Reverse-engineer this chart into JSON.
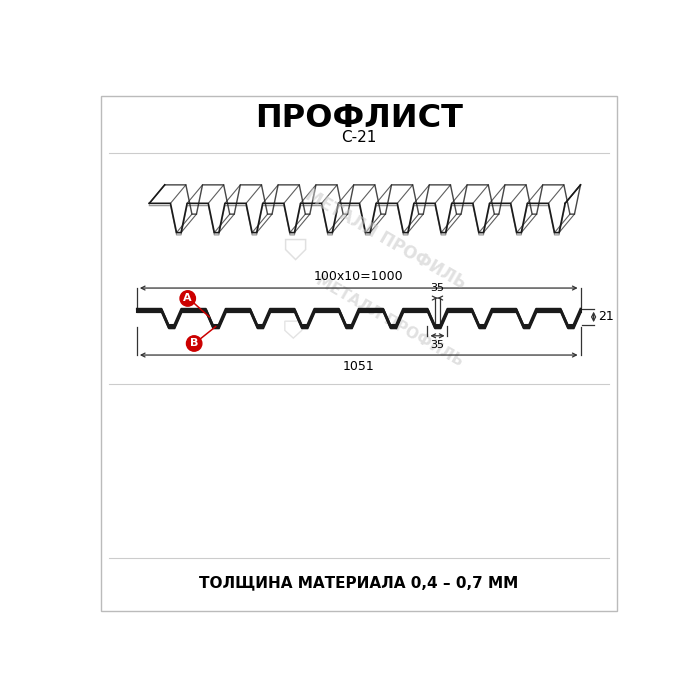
{
  "title": "ПРОФЛИСТ",
  "subtitle": "С-21",
  "footer": "ТОЛЩИНА МАТЕРИАЛА 0,4 – 0,7 ММ",
  "watermark": "МЕТАЛЛ ПРОФИЛЬ",
  "bg_color": "#ffffff",
  "profile_color": "#1a1a1a",
  "dim_color": "#333333",
  "red_circle_color": "#cc0000",
  "label_A": "A",
  "label_B": "B",
  "dim_top": "100х10=1000",
  "dim_bottom": "1051",
  "dim_35_top": "35",
  "dim_35_bottom": "35",
  "dim_21": "21",
  "wm_color": "#c8c8c8",
  "wm_alpha": 0.55
}
